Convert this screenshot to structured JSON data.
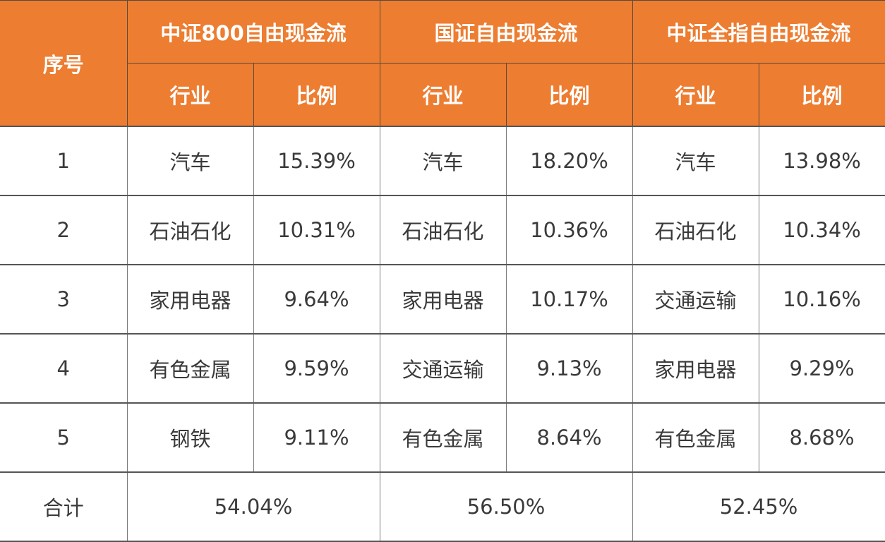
{
  "header": {
    "index_label": "序号",
    "groups": [
      {
        "title": "中证800自由现金流",
        "industry_label": "行业",
        "ratio_label": "比例"
      },
      {
        "title": "国证自由现金流",
        "industry_label": "行业",
        "ratio_label": "比例"
      },
      {
        "title": "中证全指自由现金流",
        "industry_label": "行业",
        "ratio_label": "比例"
      }
    ]
  },
  "rows": [
    {
      "index": "1",
      "cells": [
        {
          "industry": "汽车",
          "ratio": "15.39%"
        },
        {
          "industry": "汽车",
          "ratio": "18.20%"
        },
        {
          "industry": "汽车",
          "ratio": "13.98%"
        }
      ]
    },
    {
      "index": "2",
      "cells": [
        {
          "industry": "石油石化",
          "ratio": "10.31%"
        },
        {
          "industry": "石油石化",
          "ratio": "10.36%"
        },
        {
          "industry": "石油石化",
          "ratio": "10.34%"
        }
      ]
    },
    {
      "index": "3",
      "cells": [
        {
          "industry": "家用电器",
          "ratio": "9.64%"
        },
        {
          "industry": "家用电器",
          "ratio": "10.17%"
        },
        {
          "industry": "交通运输",
          "ratio": "10.16%"
        }
      ]
    },
    {
      "index": "4",
      "cells": [
        {
          "industry": "有色金属",
          "ratio": "9.59%"
        },
        {
          "industry": "交通运输",
          "ratio": "9.13%"
        },
        {
          "industry": "家用电器",
          "ratio": "9.29%"
        }
      ]
    },
    {
      "index": "5",
      "cells": [
        {
          "industry": "钢铁",
          "ratio": "9.11%"
        },
        {
          "industry": "有色金属",
          "ratio": "8.64%"
        },
        {
          "industry": "有色金属",
          "ratio": "8.68%"
        }
      ]
    }
  ],
  "total": {
    "label": "合计",
    "values": [
      "54.04%",
      "56.50%",
      "52.45%"
    ]
  },
  "colors": {
    "header_bg": "#ed7d31",
    "header_text": "#ffffff",
    "body_text": "#3a3a3a"
  }
}
